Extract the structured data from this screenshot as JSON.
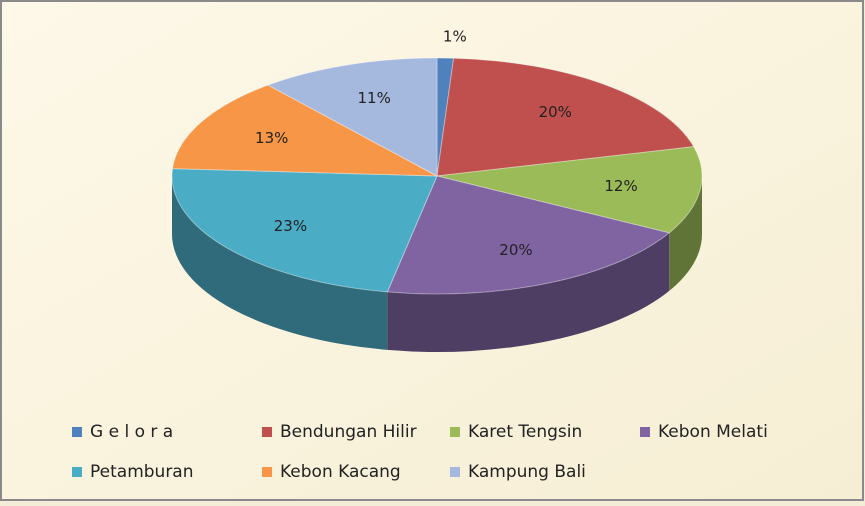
{
  "chart_data": {
    "type": "pie",
    "categories": [
      "G e l o r a",
      "Bendungan Hilir",
      "Karet Tengsin",
      "Kebon Melati",
      "Petamburan",
      "Kebon Kacang",
      "Kampung Bali"
    ],
    "values": [
      1,
      20,
      12,
      20,
      23,
      13,
      11
    ],
    "value_labels": [
      "1%",
      "20%",
      "12%",
      "20%",
      "23%",
      "13%",
      "11%"
    ],
    "colors": [
      "#4f81bd",
      "#c0504d",
      "#9bbb59",
      "#8064a2",
      "#4bacc6",
      "#f79646",
      "#a5b8de"
    ]
  }
}
